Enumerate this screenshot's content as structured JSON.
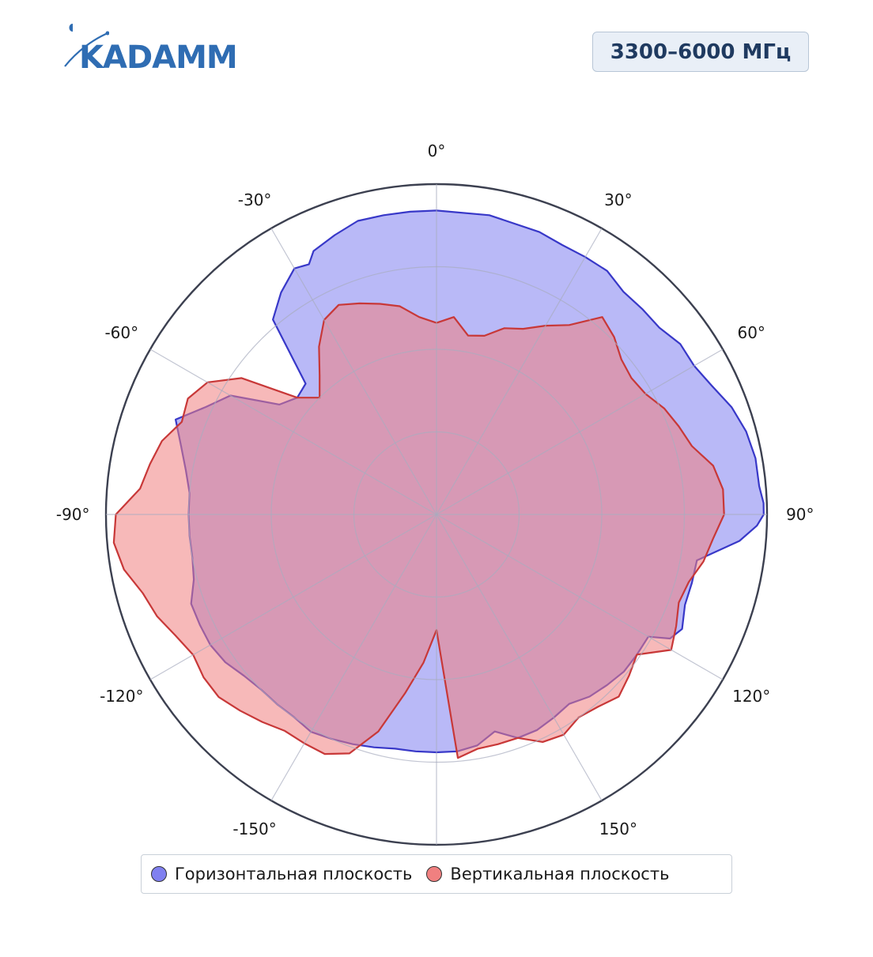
{
  "logo": {
    "text": "KADAMM",
    "color": "#2f6db3"
  },
  "frequency_badge": "3300–6000 МГц",
  "chart_data": {
    "type": "polar-area",
    "angle_unit": "degrees",
    "angle_ticks": [
      {
        "angle": 0,
        "label": "0°"
      },
      {
        "angle": 30,
        "label": "30°"
      },
      {
        "angle": 60,
        "label": "60°"
      },
      {
        "angle": 90,
        "label": "90°"
      },
      {
        "angle": 120,
        "label": "120°"
      },
      {
        "angle": 150,
        "label": "150°"
      },
      {
        "angle": 180,
        "label": ""
      },
      {
        "angle": -150,
        "label": "-150°"
      },
      {
        "angle": -120,
        "label": "-120°"
      },
      {
        "angle": -90,
        "label": "-90°"
      },
      {
        "angle": -60,
        "label": "-60°"
      },
      {
        "angle": -30,
        "label": "-30°"
      }
    ],
    "radial_range": [
      0,
      1
    ],
    "radial_grid": [
      0.25,
      0.5,
      0.75,
      1.0
    ],
    "grid": true,
    "legend_position": "bottom",
    "series": [
      {
        "name": "Горизонтальная плоскость",
        "fill": "#8080f0",
        "stroke": "#3838c8",
        "angles": [
          0,
          10,
          20,
          25,
          30,
          35,
          40,
          45,
          50,
          55,
          60,
          65,
          70,
          75,
          80,
          85,
          88,
          90,
          92,
          95,
          100,
          105,
          110,
          115,
          118,
          120,
          125,
          130,
          135,
          140,
          145,
          150,
          155,
          160,
          165,
          170,
          175,
          180,
          -175,
          -170,
          -165,
          -160,
          -155,
          -150,
          -145,
          -140,
          -135,
          -130,
          -125,
          -120,
          -115,
          -110,
          -105,
          -100,
          -95,
          -90,
          -85,
          -80,
          -75,
          -70,
          -65,
          -60,
          -55,
          -50,
          -45,
          -40,
          -35,
          -30,
          -27,
          -25,
          -20,
          -15,
          -10,
          -5
        ],
        "values": [
          0.92,
          0.92,
          0.91,
          0.9,
          0.9,
          0.9,
          0.88,
          0.88,
          0.88,
          0.9,
          0.9,
          0.92,
          0.95,
          0.97,
          0.98,
          0.98,
          0.99,
          0.99,
          0.97,
          0.92,
          0.8,
          0.8,
          0.8,
          0.82,
          0.8,
          0.74,
          0.74,
          0.74,
          0.73,
          0.72,
          0.7,
          0.71,
          0.72,
          0.72,
          0.68,
          0.71,
          0.72,
          0.72,
          0.72,
          0.72,
          0.73,
          0.74,
          0.75,
          0.76,
          0.75,
          0.75,
          0.75,
          0.76,
          0.78,
          0.79,
          0.79,
          0.79,
          0.76,
          0.75,
          0.75,
          0.75,
          0.75,
          0.77,
          0.8,
          0.84,
          0.77,
          0.72,
          0.58,
          0.55,
          0.56,
          0.77,
          0.82,
          0.86,
          0.85,
          0.88,
          0.9,
          0.92,
          0.92,
          0.92
        ]
      },
      {
        "name": "Вертикальная плоскость",
        "fill": "#f08080",
        "stroke": "#c83838",
        "angles": [
          0,
          5,
          10,
          15,
          20,
          25,
          30,
          35,
          40,
          45,
          50,
          55,
          60,
          65,
          70,
          75,
          80,
          85,
          90,
          95,
          100,
          105,
          110,
          115,
          120,
          125,
          130,
          135,
          140,
          145,
          150,
          155,
          160,
          165,
          170,
          175,
          180,
          -175,
          -170,
          -165,
          -160,
          -155,
          -150,
          -145,
          -140,
          -135,
          -130,
          -125,
          -120,
          -115,
          -110,
          -105,
          -100,
          -95,
          -90,
          -85,
          -80,
          -75,
          -70,
          -65,
          -60,
          -55,
          -50,
          -45,
          -40,
          -35,
          -30,
          -25,
          -20,
          -15,
          -10,
          -5
        ],
        "values": [
          0.58,
          0.6,
          0.55,
          0.56,
          0.6,
          0.62,
          0.66,
          0.7,
          0.78,
          0.76,
          0.73,
          0.72,
          0.73,
          0.76,
          0.78,
          0.8,
          0.85,
          0.87,
          0.87,
          0.84,
          0.82,
          0.79,
          0.78,
          0.8,
          0.82,
          0.74,
          0.76,
          0.78,
          0.76,
          0.75,
          0.77,
          0.76,
          0.72,
          0.72,
          0.72,
          0.74,
          0.35,
          0.45,
          0.55,
          0.68,
          0.77,
          0.8,
          0.8,
          0.8,
          0.82,
          0.84,
          0.86,
          0.86,
          0.85,
          0.87,
          0.9,
          0.92,
          0.96,
          0.98,
          0.97,
          0.9,
          0.88,
          0.86,
          0.82,
          0.83,
          0.8,
          0.72,
          0.55,
          0.5,
          0.55,
          0.62,
          0.68,
          0.7,
          0.68,
          0.66,
          0.64,
          0.6
        ]
      }
    ],
    "colors": {
      "grid": "#a8acbf",
      "frame": "#3c4050"
    }
  }
}
